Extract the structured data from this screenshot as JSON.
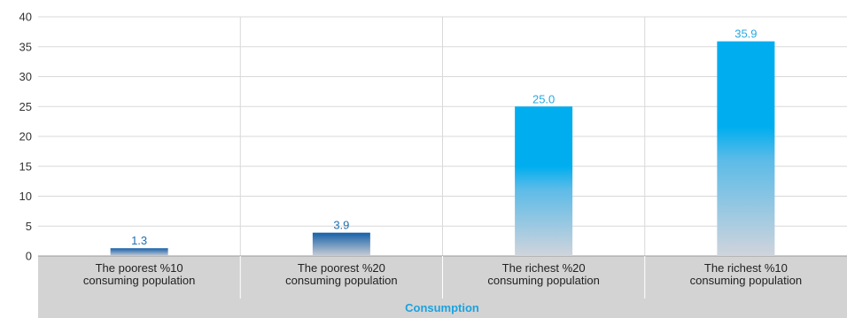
{
  "chart_data": {
    "type": "bar",
    "title": "",
    "categories": [
      [
        "The poorest %10",
        "consuming population"
      ],
      [
        "The poorest %20",
        "consuming population"
      ],
      [
        "The richest %20",
        "consuming population"
      ],
      [
        "The richest %10",
        "consuming population"
      ]
    ],
    "values": [
      1.3,
      3.9,
      25.0,
      35.9
    ],
    "value_labels": [
      "1.3",
      "3.9",
      "25.0",
      "35.9"
    ],
    "xlabel": "Consumption",
    "ylabel": "",
    "ylim": [
      0,
      40
    ],
    "yticks": [
      0,
      5,
      10,
      15,
      20,
      25,
      30,
      35,
      40
    ],
    "grid": true,
    "colors": {
      "bar_light_top": "#00aeef",
      "bar_light_bottom": "#d0d4dc",
      "bar_dark_top": "#1560a8",
      "bar_dark_bottom": "#c9ccd4",
      "label_light": "#29a9e1",
      "label_dark": "#1f6fb2",
      "axis_band": "#d3d3d3",
      "grid": "#d9d9d9",
      "title": "#1aa3e0"
    }
  }
}
